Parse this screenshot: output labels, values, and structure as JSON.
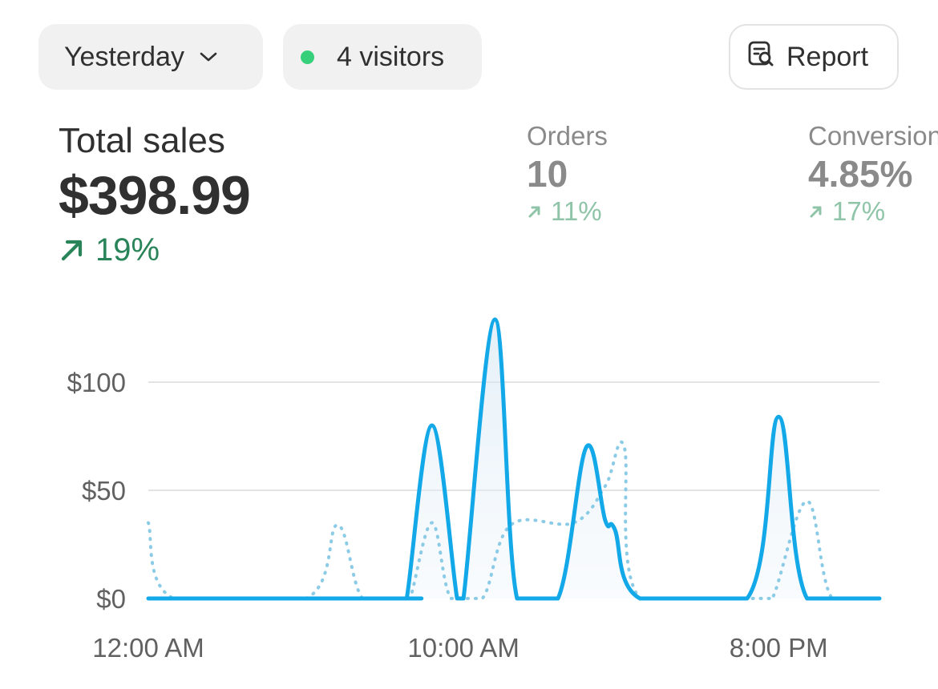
{
  "toolbar": {
    "date_range_label": "Yesterday",
    "visitors_label": "4 visitors",
    "visitors_dot_color": "#36d07b",
    "report_label": "Report"
  },
  "metrics": {
    "total_sales": {
      "label": "Total sales",
      "value": "$398.99",
      "change": "19%",
      "trend": "up"
    },
    "orders": {
      "label": "Orders",
      "value": "10",
      "change": "11%",
      "trend": "up"
    },
    "conversion": {
      "label": "Conversion",
      "value": "4.85%",
      "change": "17%",
      "trend": "up"
    }
  },
  "colors": {
    "accent_line": "#13a8e8",
    "comparison_line": "#8ccbe6",
    "positive": "#29845a",
    "positive_muted": "#8fc4a8"
  },
  "chart_data": {
    "type": "line",
    "ylim": [
      0,
      130
    ],
    "y_ticks": [
      {
        "value": 0,
        "label": "$0"
      },
      {
        "value": 50,
        "label": "$50"
      },
      {
        "value": 100,
        "label": "$100"
      }
    ],
    "x_ticks": [
      {
        "hour": 0,
        "label": "12:00 AM"
      },
      {
        "hour": 10,
        "label": "10:00 AM"
      },
      {
        "hour": 20,
        "label": "8:00 PM"
      }
    ],
    "grid": true,
    "series": [
      {
        "style": "solid",
        "points": [
          [
            0,
            0
          ],
          [
            8,
            0
          ],
          [
            8.2,
            0
          ],
          [
            9,
            80
          ],
          [
            9.8,
            0
          ],
          [
            10,
            0
          ],
          [
            11,
            129
          ],
          [
            11.7,
            0
          ],
          [
            13,
            0
          ],
          [
            13.9,
            70
          ],
          [
            14.5,
            36
          ],
          [
            14.8,
            32
          ],
          [
            15.6,
            0
          ],
          [
            19,
            0
          ],
          [
            20,
            84
          ],
          [
            20.9,
            0
          ],
          [
            23.2,
            0
          ]
        ]
      },
      {
        "style": "dotted",
        "points": [
          [
            0,
            35
          ],
          [
            0.8,
            0
          ],
          [
            5,
            0
          ],
          [
            6,
            34
          ],
          [
            6.8,
            0
          ],
          [
            8,
            0
          ],
          [
            8.3,
            0
          ],
          [
            9,
            35
          ],
          [
            9.6,
            0
          ],
          [
            10.6,
            0
          ],
          [
            11.5,
            34
          ],
          [
            13.5,
            35
          ],
          [
            14.5,
            52
          ],
          [
            15.1,
            70
          ],
          [
            15.6,
            0
          ],
          [
            19.3,
            0
          ],
          [
            19.8,
            0
          ],
          [
            20.9,
            45
          ],
          [
            21.7,
            0
          ],
          [
            23.2,
            0
          ]
        ]
      }
    ]
  }
}
